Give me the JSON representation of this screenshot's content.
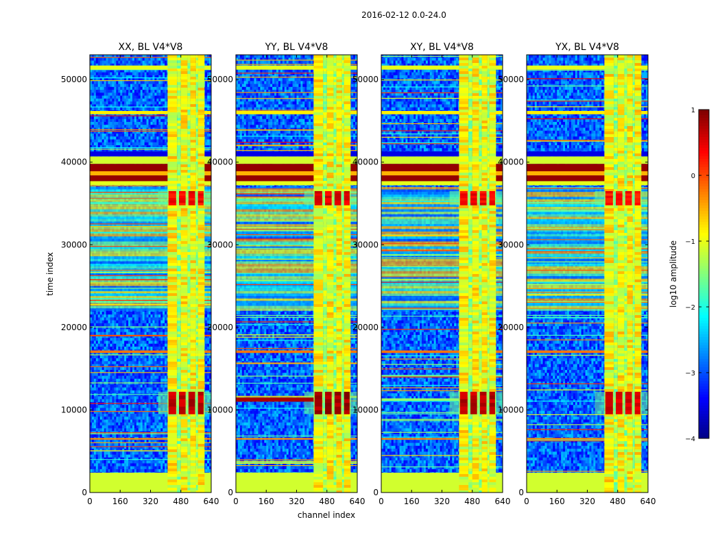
{
  "figure": {
    "suptitle": "2016-02-12 0.0-24.0",
    "xlabel": "channel index",
    "ylabel": "time index"
  },
  "chart_data": {
    "type": "heatmap",
    "colormap": "jet",
    "xlim": [
      0,
      640
    ],
    "ylim": [
      0,
      53000
    ],
    "x_ticks": [
      "0",
      "160",
      "320",
      "480",
      "640"
    ],
    "x_tick_values": [
      0,
      160,
      320,
      480,
      640
    ],
    "y_ticks": [
      "0",
      "10000",
      "20000",
      "30000",
      "40000",
      "50000"
    ],
    "y_tick_values": [
      0,
      10000,
      20000,
      30000,
      40000,
      50000
    ],
    "panels": [
      {
        "title": "XX, BL V4*V8",
        "burst_strength": "high"
      },
      {
        "title": "YY, BL V4*V8",
        "burst_strength": "very high"
      },
      {
        "title": "XY, BL V4*V8",
        "burst_strength": "high"
      },
      {
        "title": "YX, BL V4*V8",
        "burst_strength": "medium"
      }
    ],
    "colorbar": {
      "label": "log10 amplitude",
      "range": [
        -4,
        1
      ],
      "ticks": [
        "−4",
        "−3",
        "−2",
        "−1",
        "0",
        "1"
      ],
      "tick_values": [
        -4,
        -3,
        -2,
        -1,
        0,
        1
      ]
    },
    "rfi_channels": [
      {
        "from": 410,
        "to": 460,
        "level": -0.9
      },
      {
        "from": 460,
        "to": 480,
        "level": -1.3
      },
      {
        "from": 480,
        "to": 515,
        "level": -0.9
      },
      {
        "from": 515,
        "to": 530,
        "level": -1.3
      },
      {
        "from": 530,
        "to": 560,
        "level": -0.9
      },
      {
        "from": 560,
        "to": 570,
        "level": -1.3
      },
      {
        "from": 570,
        "to": 605,
        "level": -0.9
      }
    ],
    "row_features": [
      {
        "from": 0,
        "to": 2400,
        "level": -1.1,
        "note": "low-time flagged block"
      },
      {
        "from": 37200,
        "to": 37700,
        "level": -1.0
      },
      {
        "from": 37700,
        "to": 38400,
        "level": 0.9
      },
      {
        "from": 38400,
        "to": 38900,
        "level": -0.5
      },
      {
        "from": 38900,
        "to": 39800,
        "level": 0.9
      },
      {
        "from": 39800,
        "to": 40700,
        "level": -1.1
      },
      {
        "from": 40700,
        "to": 41300,
        "level": -3.5
      },
      {
        "from": 51200,
        "to": 51700,
        "level": -1.0
      },
      {
        "from": 45800,
        "to": 46200,
        "level": -0.8
      },
      {
        "from": 16900,
        "to": 17200,
        "level": -0.2
      },
      {
        "from": 6400,
        "to": 6600,
        "level": -0.3
      }
    ],
    "bursts": [
      {
        "from_time": 9500,
        "to_time": 12200,
        "level": 0.9
      },
      {
        "from_time": 34800,
        "to_time": 36500,
        "level": 0.6
      }
    ]
  }
}
